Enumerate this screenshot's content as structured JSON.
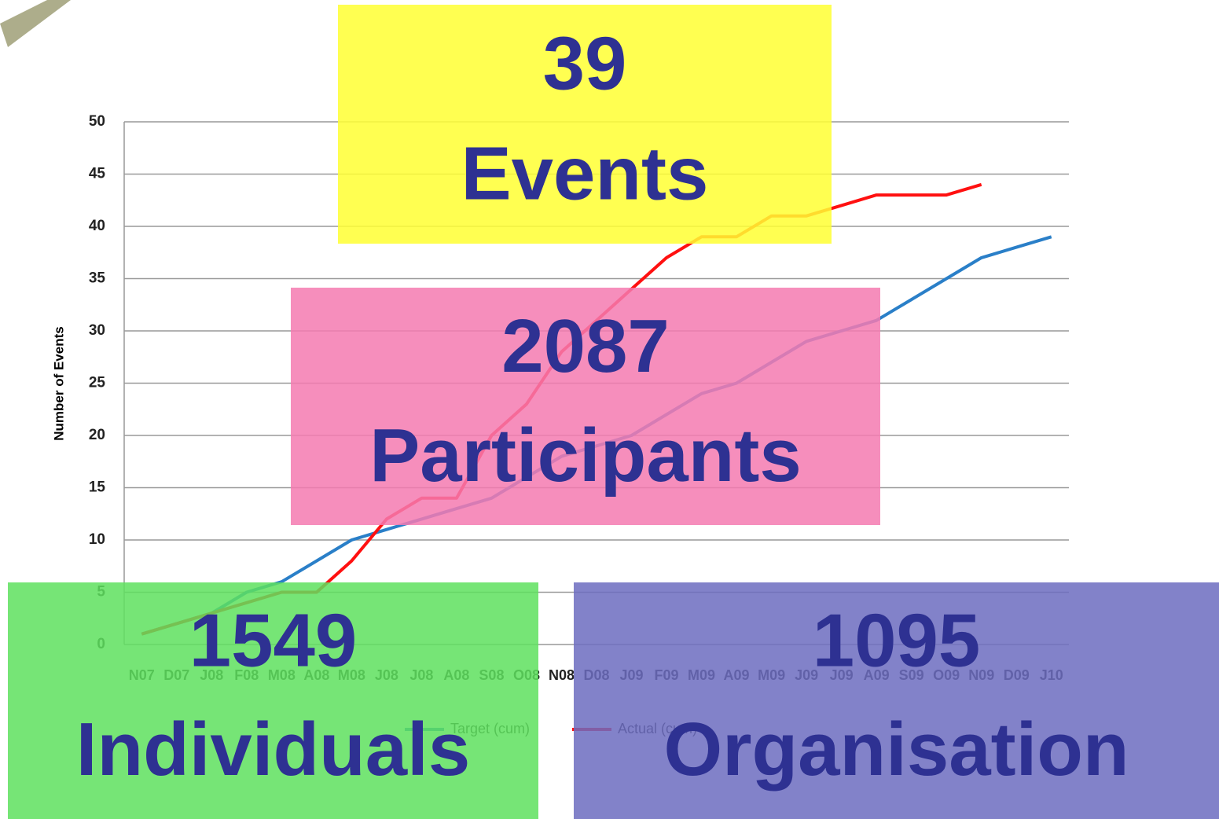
{
  "chart_data": {
    "type": "line",
    "y_label": "Number of Events",
    "categories": [
      "N07",
      "D07",
      "J08",
      "F08",
      "M08",
      "A08",
      "M08",
      "J08",
      "J08",
      "A08",
      "S08",
      "O08",
      "N08",
      "D08",
      "J09",
      "F09",
      "M09",
      "A09",
      "M09",
      "J09",
      "J09",
      "A09",
      "S09",
      "O09",
      "N09",
      "D09",
      "J10"
    ],
    "series": [
      {
        "name": "Target (cum)",
        "color": "#2a7fc8",
        "values": [
          1,
          2,
          3,
          5,
          6,
          8,
          10,
          11,
          12,
          13,
          14,
          16,
          18,
          19,
          20,
          22,
          24,
          25,
          27,
          29,
          30,
          31,
          33,
          35,
          37,
          38,
          39
        ]
      },
      {
        "name": "Actual (cum)",
        "color": "#ff1010",
        "values": [
          1,
          2,
          3,
          4,
          5,
          5,
          8,
          12,
          14,
          14,
          20,
          23,
          28,
          31,
          34,
          37,
          39,
          39,
          41,
          41,
          42,
          43,
          43,
          43,
          44,
          null,
          null
        ]
      }
    ],
    "ylim": [
      0,
      50
    ],
    "yticks": [
      0,
      5,
      10,
      15,
      20,
      25,
      30,
      35,
      40,
      45,
      50
    ],
    "grid": true,
    "legend": "bottom"
  },
  "overlays": [
    {
      "number": "39",
      "label": "Events",
      "color": "#ffff33"
    },
    {
      "number": "2087",
      "label": "Participants",
      "color": "#f47ab0"
    },
    {
      "number": "1549",
      "label": "Individuals",
      "color": "#5ee05e"
    },
    {
      "number": "1095",
      "label": "Organisation",
      "color": "#6c6cbf"
    }
  ]
}
